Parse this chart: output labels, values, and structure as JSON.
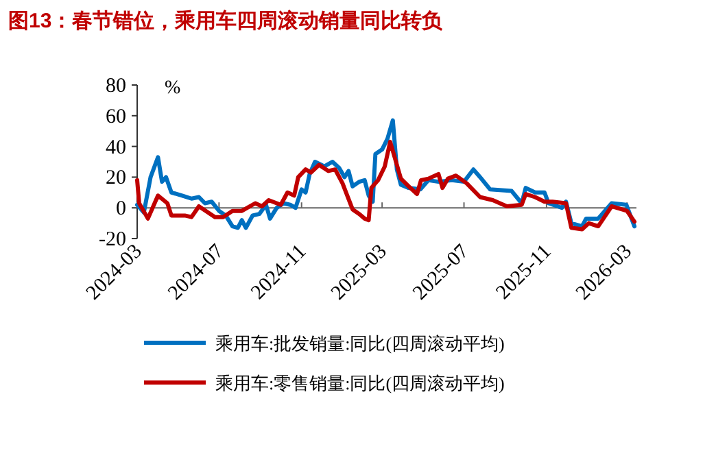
{
  "chart_data": {
    "type": "line",
    "title": "图13：春节错位，乘用车四周滚动销量同比转负",
    "ylabel": "%",
    "xlim": [
      "2024-03-01",
      "2026-03-15"
    ],
    "xticks": [
      "2024-03",
      "2024-07",
      "2024-11",
      "2025-03",
      "2025-07",
      "2025-11",
      "2026-03"
    ],
    "ylim": [
      -20,
      80
    ],
    "yticks": [
      -20,
      0,
      20,
      40,
      60,
      80
    ],
    "grid": false,
    "legend": "bottom",
    "marker": "none",
    "line_style": "solid",
    "series": [
      {
        "name": "乘用车:批发销量:同比(四周滚动平均)",
        "color": "#0070c0",
        "x": [
          "2024-03-01",
          "2024-03-11",
          "2024-03-21",
          "2024-04-01",
          "2024-04-07",
          "2024-04-13",
          "2024-04-21",
          "2024-05-07",
          "2024-05-21",
          "2024-06-01",
          "2024-06-10",
          "2024-06-20",
          "2024-07-01",
          "2024-07-11",
          "2024-07-21",
          "2024-07-29",
          "2024-08-04",
          "2024-08-10",
          "2024-08-20",
          "2024-08-30",
          "2024-09-09",
          "2024-09-15",
          "2024-09-25",
          "2024-10-05",
          "2024-10-15",
          "2024-10-23",
          "2024-11-01",
          "2024-11-07",
          "2024-11-13",
          "2024-11-21",
          "2024-12-05",
          "2024-12-17",
          "2024-12-27",
          "2025-01-04",
          "2025-01-10",
          "2025-01-16",
          "2025-01-26",
          "2025-02-03",
          "2025-02-09",
          "2025-02-15",
          "2025-02-19",
          "2025-03-01",
          "2025-03-09",
          "2025-03-17",
          "2025-03-23",
          "2025-03-29",
          "2025-04-09",
          "2025-04-27",
          "2025-05-09",
          "2025-05-24",
          "2025-06-13",
          "2025-07-01",
          "2025-07-15",
          "2025-07-25",
          "2025-08-09",
          "2025-09-10",
          "2025-09-25",
          "2025-10-01",
          "2025-10-15",
          "2025-10-29",
          "2025-11-04",
          "2025-11-24",
          "2025-11-30",
          "2025-12-08",
          "2025-12-24",
          "2025-12-30",
          "2026-01-17",
          "2026-02-06",
          "2026-02-28",
          "2026-03-12"
        ],
        "values": [
          2,
          -3,
          20,
          33,
          17,
          20,
          10,
          8,
          6,
          7,
          3,
          4,
          -2,
          -5,
          -12,
          -13,
          -8,
          -13,
          -5,
          -4,
          2,
          -7,
          0,
          3,
          2,
          0,
          12,
          10,
          22,
          30,
          27,
          30,
          26,
          20,
          24,
          14,
          17,
          18,
          8,
          4,
          35,
          38,
          45,
          57,
          25,
          15,
          13,
          12,
          18,
          17,
          18,
          17,
          25,
          20,
          12,
          11,
          3,
          13,
          10,
          10,
          3,
          0,
          4,
          -10,
          -12,
          -7,
          -7,
          3,
          2,
          -12
        ]
      },
      {
        "name": "乘用车:零售销量:同比(四周滚动平均)",
        "color": "#c00000",
        "x": [
          "2024-03-01",
          "2024-03-04",
          "2024-03-17",
          "2024-04-01",
          "2024-04-15",
          "2024-04-21",
          "2024-05-11",
          "2024-05-21",
          "2024-06-01",
          "2024-06-25",
          "2024-07-07",
          "2024-07-21",
          "2024-08-04",
          "2024-08-24",
          "2024-09-03",
          "2024-09-13",
          "2024-10-01",
          "2024-10-11",
          "2024-10-21",
          "2024-10-27",
          "2024-11-07",
          "2024-11-15",
          "2024-11-27",
          "2024-12-11",
          "2024-12-21",
          "2025-01-01",
          "2025-01-16",
          "2025-01-26",
          "2025-02-03",
          "2025-02-09",
          "2025-02-13",
          "2025-02-23",
          "2025-03-05",
          "2025-03-13",
          "2025-03-23",
          "2025-03-29",
          "2025-04-12",
          "2025-04-22",
          "2025-04-28",
          "2025-05-09",
          "2025-05-24",
          "2025-05-30",
          "2025-06-07",
          "2025-06-19",
          "2025-07-05",
          "2025-07-25",
          "2025-08-13",
          "2025-09-03",
          "2025-09-25",
          "2025-10-01",
          "2025-10-15",
          "2025-10-29",
          "2025-11-10",
          "2025-11-30",
          "2025-12-08",
          "2025-12-24",
          "2026-01-03",
          "2026-01-17",
          "2026-02-06",
          "2026-03-01",
          "2026-03-12"
        ],
        "values": [
          18,
          3,
          -7,
          8,
          3,
          -5,
          -5,
          -6,
          1,
          -6,
          -6,
          -2,
          -2,
          3,
          1,
          5,
          2,
          10,
          8,
          20,
          25,
          23,
          28,
          24,
          25,
          16,
          -1,
          -4,
          -7,
          -8,
          13,
          18,
          27,
          43,
          28,
          19,
          13,
          9,
          18,
          19,
          22,
          13,
          19,
          21,
          16,
          7,
          5,
          1,
          2,
          9,
          7,
          4,
          4,
          3,
          -13,
          -14,
          -10,
          -12,
          1,
          -2,
          -9
        ]
      }
    ]
  }
}
